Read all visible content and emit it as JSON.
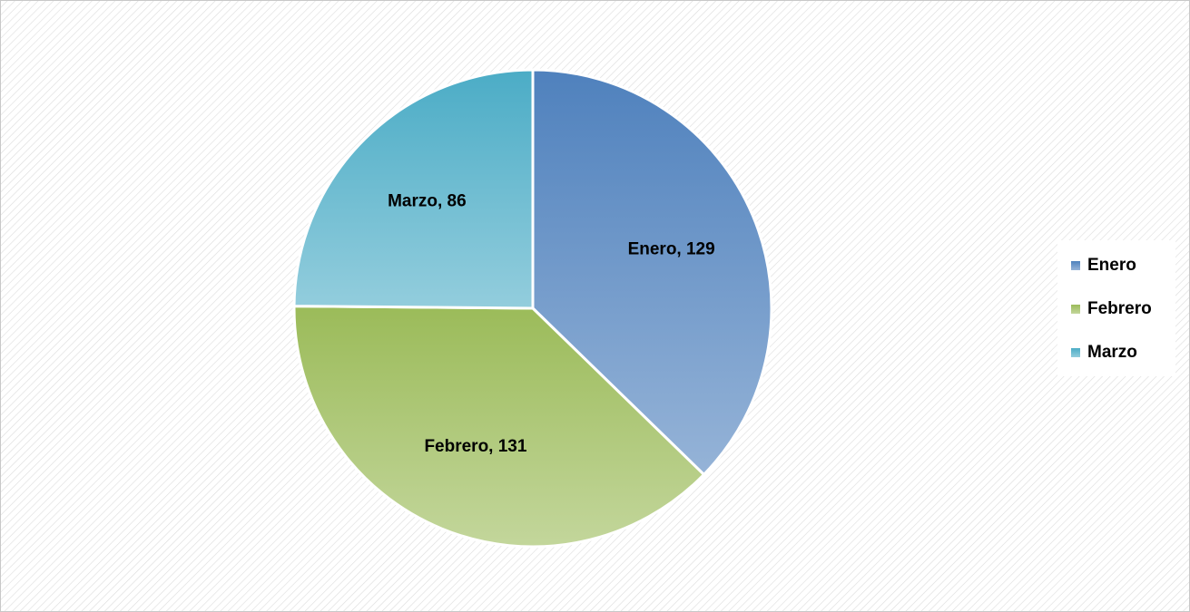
{
  "chart_data": {
    "type": "pie",
    "categories": [
      "Enero",
      "Febrero",
      "Marzo"
    ],
    "values": [
      129,
      131,
      86
    ],
    "value_labels": [
      "Enero, 129",
      "Febrero, 131",
      "Marzo, 86"
    ],
    "colors": [
      "#4f81bd",
      "#9bbb59",
      "#4bacc6"
    ],
    "legend": "right"
  }
}
